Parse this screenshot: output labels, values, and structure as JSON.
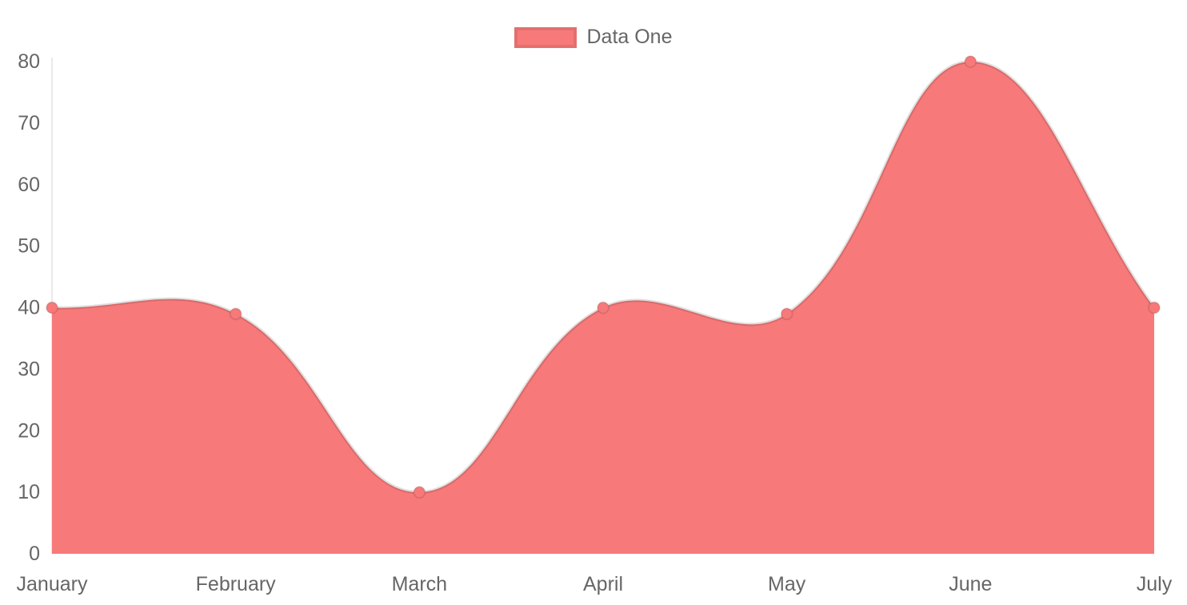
{
  "chart_data": {
    "type": "area",
    "title": "",
    "legend": {
      "position": "top-center",
      "entries": [
        {
          "label": "Data One",
          "color": "#f87979"
        }
      ]
    },
    "categories": [
      "January",
      "February",
      "March",
      "April",
      "May",
      "June",
      "July"
    ],
    "series": [
      {
        "name": "Data One",
        "values": [
          40,
          39,
          10,
          40,
          39,
          80,
          40
        ]
      }
    ],
    "xlabel": "",
    "ylabel": "",
    "ylim": [
      0,
      80
    ],
    "yticks": [
      0,
      10,
      20,
      30,
      40,
      50,
      60,
      70,
      80
    ],
    "grid": false,
    "line_tension": 0.4,
    "colors": {
      "fill": "#f87979",
      "point_fill": "#f87979",
      "point_border": "rgba(0,0,0,0.10)",
      "line_border": "rgba(0,0,0,0.12)",
      "axis_line": "#e9e9e9",
      "tick_text": "#666666",
      "legend_text": "#666666"
    }
  }
}
